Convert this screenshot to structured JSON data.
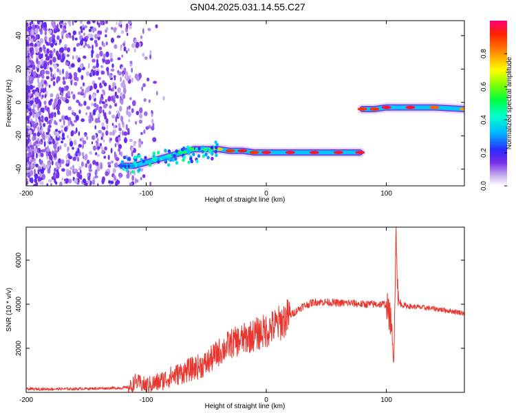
{
  "title": "GN04.2025.031.14.55.C27",
  "chart_data": [
    {
      "type": "heatmap",
      "xlabel": "Height of straight line (km)",
      "ylabel": "Frequency (Hz)",
      "xlim": [
        -200,
        165
      ],
      "ylim": [
        -50,
        49
      ],
      "xticks": [
        -200,
        -100,
        0,
        100
      ],
      "yticks": [
        -40,
        -20,
        0,
        20,
        40
      ],
      "colorbar": {
        "label": "Normalized spectral amplitude",
        "range": [
          0,
          1
        ],
        "ticks": [
          0.0,
          0.2,
          0.4,
          0.6,
          0.8
        ],
        "tick_labels": [
          "0.0",
          "0.2",
          "0.4",
          "0.6",
          "0.8"
        ]
      },
      "ridge": [
        {
          "x": -120,
          "y": -38,
          "amp": 0.25
        },
        {
          "x": -110,
          "y": -38,
          "amp": 0.3
        },
        {
          "x": -100,
          "y": -36,
          "amp": 0.35
        },
        {
          "x": -90,
          "y": -34,
          "amp": 0.4
        },
        {
          "x": -80,
          "y": -32,
          "amp": 0.45
        },
        {
          "x": -70,
          "y": -30,
          "amp": 0.5
        },
        {
          "x": -60,
          "y": -28,
          "amp": 0.55
        },
        {
          "x": -50,
          "y": -28,
          "amp": 0.6
        },
        {
          "x": -40,
          "y": -28,
          "amp": 0.75
        },
        {
          "x": -30,
          "y": -29,
          "amp": 0.9
        },
        {
          "x": -20,
          "y": -29,
          "amp": 0.95
        },
        {
          "x": -10,
          "y": -30,
          "amp": 0.9
        },
        {
          "x": 0,
          "y": -30,
          "amp": 0.95
        },
        {
          "x": 20,
          "y": -30,
          "amp": 0.95
        },
        {
          "x": 40,
          "y": -30,
          "amp": 0.95
        },
        {
          "x": 60,
          "y": -30,
          "amp": 0.95
        },
        {
          "x": 78,
          "y": -30,
          "amp": 0.95
        },
        {
          "x": 80,
          "y": -4,
          "amp": 0.9
        },
        {
          "x": 90,
          "y": -4,
          "amp": 0.9
        },
        {
          "x": 100,
          "y": -3,
          "amp": 0.95
        },
        {
          "x": 120,
          "y": -3,
          "amp": 0.95
        },
        {
          "x": 140,
          "y": -3,
          "amp": 0.85
        },
        {
          "x": 165,
          "y": -4,
          "amp": 0.8
        }
      ]
    },
    {
      "type": "line",
      "xlabel": "Height of straight line (km)",
      "ylabel": "SNR (10 * v/v)",
      "xlim": [
        -200,
        165
      ],
      "ylim": [
        0,
        7500
      ],
      "xticks": [
        -200,
        -100,
        0,
        100
      ],
      "yticks": [
        2000,
        4000,
        6000
      ],
      "color": "#e8352e",
      "series": [
        {
          "x": [
            -200,
            -180,
            -160,
            -140,
            -120,
            -112,
            -110,
            -100,
            -90,
            -80,
            -70,
            -60,
            -50,
            -40,
            -30,
            -20,
            -10,
            0,
            10,
            20,
            30,
            40,
            50,
            60,
            70,
            80,
            90,
            100,
            104,
            106,
            108,
            110,
            120,
            140,
            165
          ],
          "y": [
            150,
            150,
            160,
            180,
            200,
            250,
            500,
            300,
            450,
            700,
            900,
            1100,
            1300,
            1800,
            2200,
            2400,
            2600,
            2800,
            3100,
            3500,
            3900,
            4100,
            4100,
            4050,
            4050,
            4000,
            4000,
            4000,
            3200,
            1000,
            7400,
            4000,
            3900,
            3800,
            3600
          ]
        }
      ]
    }
  ]
}
